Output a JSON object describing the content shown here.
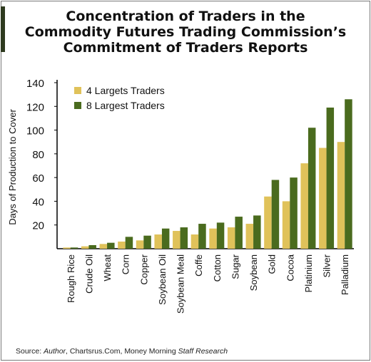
{
  "title_lines": [
    "Concentration of Traders in the",
    "Commodity Futures Trading Commission’s",
    "Commitment of Traders Reports"
  ],
  "source": {
    "prefix": "Source: ",
    "author": "Author",
    "mid": ", Chartsrus.Com, Money Morning ",
    "staff": "Staff Research"
  },
  "colors": {
    "series_4": "#e0c25a",
    "series_8": "#4a6b1e",
    "accent": "#2e3a1f",
    "axis": "#000000"
  },
  "chart_data": {
    "type": "bar",
    "ylabel": "Days of Production to Cover",
    "xlabel": "",
    "ylim": [
      0,
      140
    ],
    "yticks": [
      20,
      40,
      60,
      80,
      100,
      120,
      140
    ],
    "legend_position": "top-left",
    "categories": [
      "Rough Rice",
      "Crude Oil",
      "Wheat",
      "Corn",
      "Copper",
      "Soybean Oil",
      "Soybean Meal",
      "Coffe",
      "Cotton",
      "Sugar",
      "Soybean",
      "Gold",
      "Cocoa",
      "Platinium",
      "Silver",
      "Palladium"
    ],
    "series": [
      {
        "name": "4 Largets Traders",
        "color": "#e0c25a",
        "values": [
          1,
          2,
          4,
          6,
          7,
          12,
          15,
          12,
          17,
          18,
          21,
          44,
          40,
          72,
          85,
          90
        ]
      },
      {
        "name": "8 Largest Traders",
        "color": "#4a6b1e",
        "values": [
          1,
          3,
          5,
          10,
          11,
          17,
          18,
          21,
          22,
          27,
          28,
          58,
          60,
          102,
          119,
          126
        ]
      }
    ]
  }
}
